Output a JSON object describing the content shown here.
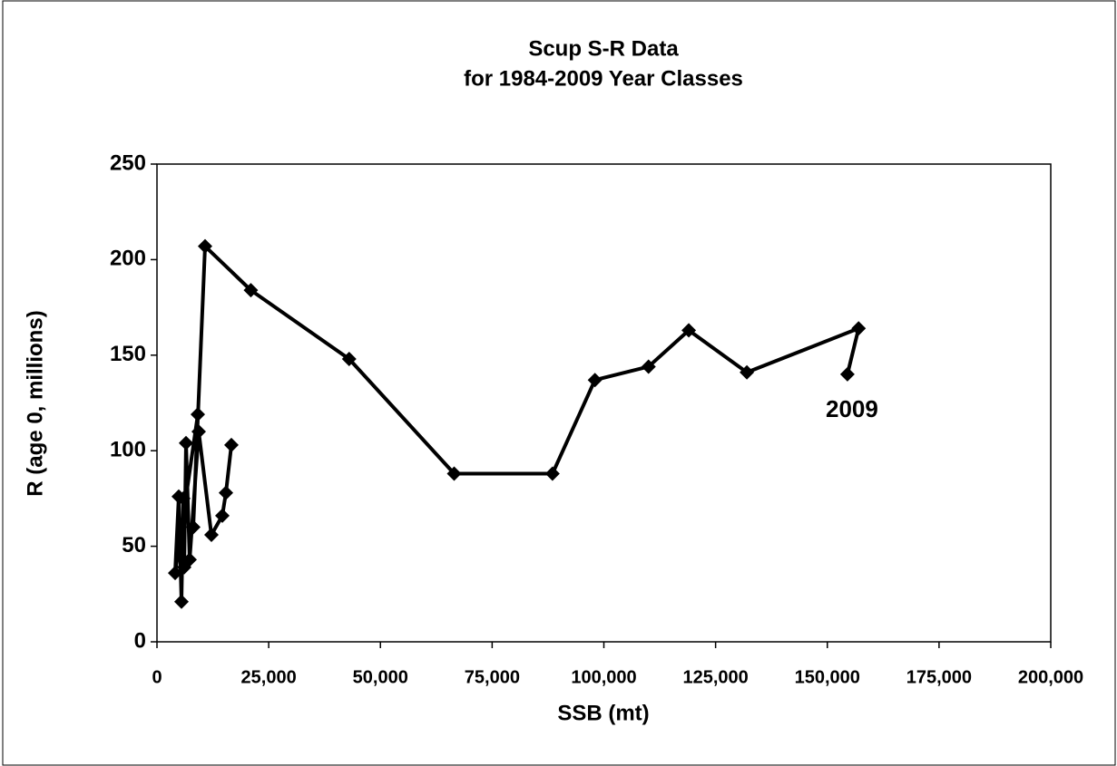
{
  "chart_data": {
    "type": "line",
    "title": [
      "Scup S-R Data",
      "for 1984-2009 Year Classes"
    ],
    "x_label": "SSB (mt)",
    "y_label": "R (age 0, millions)",
    "annotation": "2009",
    "series": [
      {
        "color": "#000000",
        "x": [
          16650,
          15430,
          14620,
          12180,
          9340,
          7310,
          6500,
          6090,
          5890,
          5480,
          4870,
          4060,
          9140,
          8120,
          10760,
          21000,
          43000,
          66500,
          88500,
          98000,
          110000,
          119000,
          132000,
          157000,
          154500
        ],
        "values": [
          103,
          78,
          66,
          56,
          110,
          43,
          104,
          39,
          75,
          21,
          76,
          36,
          119,
          60,
          207,
          184,
          148,
          88,
          88,
          137,
          144,
          163,
          141,
          164,
          140
        ]
      }
    ],
    "xlim": [
      0,
      200000
    ],
    "xticks": [
      0,
      {
        "value": 25000,
        "label": "25,000"
      },
      {
        "value": 50000,
        "label": "50,000"
      },
      {
        "value": 75000,
        "label": "75,000"
      },
      {
        "value": 100000,
        "label": "100,000"
      },
      {
        "value": 125000,
        "label": "125,000"
      },
      {
        "value": 150000,
        "label": "150,000"
      },
      {
        "value": 175000,
        "label": "175,000"
      },
      {
        "value": 200000,
        "label": "200,000"
      }
    ],
    "ylim": [
      0,
      250
    ],
    "yticks": [
      0,
      50,
      100,
      150,
      200,
      250
    ],
    "grid": false
  }
}
